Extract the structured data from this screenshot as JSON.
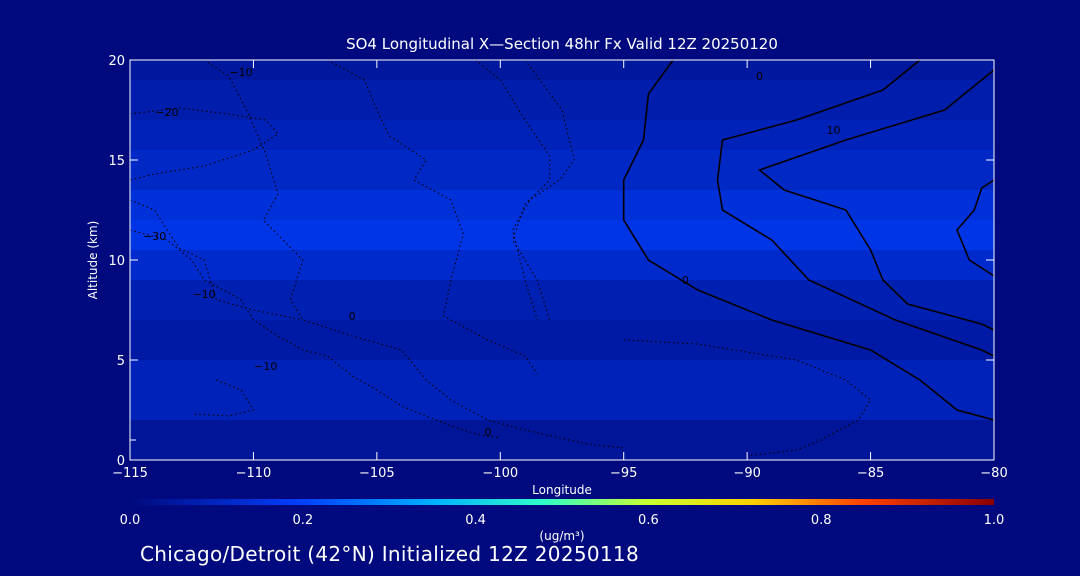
{
  "chart_data": {
    "type": "contour",
    "title": "SO4 Longitudinal X—Section 48hr  Fx Valid 12Z 20250120",
    "xlabel": "Longitude",
    "ylabel": "Altitude (km)",
    "xlim": [
      -115,
      -80
    ],
    "ylim": [
      0,
      20
    ],
    "x_ticks": [
      "−115",
      "−110",
      "−105",
      "−100",
      "−95",
      "−90",
      "−85",
      "−80"
    ],
    "y_ticks": [
      "0",
      "5",
      "10",
      "15",
      "20"
    ],
    "colorbar": {
      "label": "(ug/m³)",
      "range": [
        0.0,
        1.0
      ],
      "tick_labels": [
        "0.0",
        "0.2",
        "0.4",
        "0.6",
        "0.8",
        "1.0"
      ]
    },
    "filled_bands": [
      {
        "altitude_km": [
          19,
          20
        ],
        "value": 0.05
      },
      {
        "altitude_km": [
          17,
          19
        ],
        "value": 0.07
      },
      {
        "altitude_km": [
          15.5,
          17
        ],
        "value": 0.09
      },
      {
        "altitude_km": [
          13.5,
          15.5
        ],
        "value": 0.11
      },
      {
        "altitude_km": [
          12,
          13.5
        ],
        "value": 0.14
      },
      {
        "altitude_km": [
          10.5,
          12
        ],
        "value": 0.16
      },
      {
        "altitude_km": [
          9,
          10.5
        ],
        "value": 0.12
      },
      {
        "altitude_km": [
          7,
          9
        ],
        "value": 0.08
      },
      {
        "altitude_km": [
          5,
          7
        ],
        "value": 0.06
      },
      {
        "altitude_km": [
          2,
          5
        ],
        "value": 0.09
      },
      {
        "altitude_km": [
          0,
          2
        ],
        "value": 0.04
      }
    ],
    "contour_labels": [
      {
        "text": "−10",
        "lon": -110.5,
        "alt": 19.2
      },
      {
        "text": "−20",
        "lon": -113.5,
        "alt": 17.2
      },
      {
        "text": "−30",
        "lon": -114.0,
        "alt": 11.0
      },
      {
        "text": "−10",
        "lon": -112.0,
        "alt": 8.1
      },
      {
        "text": "−10",
        "lon": -109.5,
        "alt": 4.5
      },
      {
        "text": "0",
        "lon": -106.0,
        "alt": 7.0
      },
      {
        "text": "0",
        "lon": -100.5,
        "alt": 1.2
      },
      {
        "text": "0",
        "lon": -89.5,
        "alt": 19.0
      },
      {
        "text": "10",
        "lon": -86.5,
        "alt": 16.3
      },
      {
        "text": "0",
        "lon": -92.5,
        "alt": 8.8
      }
    ],
    "contour_lines": [
      {
        "style": "solid",
        "points": [
          [
            -93.0,
            20
          ],
          [
            -94.0,
            18.3
          ],
          [
            -94.2,
            16.0
          ],
          [
            -95.0,
            14.0
          ],
          [
            -95.0,
            12.0
          ],
          [
            -94.0,
            10.0
          ],
          [
            -92.0,
            8.5
          ],
          [
            -89.0,
            7.0
          ],
          [
            -85.0,
            5.5
          ],
          [
            -83.0,
            4.0
          ],
          [
            -81.5,
            2.5
          ],
          [
            -80,
            2.0
          ]
        ]
      },
      {
        "style": "solid",
        "points": [
          [
            -83.0,
            20
          ],
          [
            -84.5,
            18.5
          ],
          [
            -88.0,
            17.0
          ],
          [
            -91.0,
            16.0
          ],
          [
            -91.2,
            14.0
          ],
          [
            -91.0,
            12.5
          ],
          [
            -89.0,
            11.0
          ],
          [
            -87.5,
            9.0
          ],
          [
            -84.0,
            7.0
          ],
          [
            -80.5,
            5.5
          ],
          [
            -80,
            5.2
          ]
        ]
      },
      {
        "style": "solid",
        "points": [
          [
            -80,
            19.5
          ],
          [
            -82.0,
            17.5
          ],
          [
            -86.0,
            16.0
          ],
          [
            -89.5,
            14.5
          ],
          [
            -88.5,
            13.5
          ],
          [
            -86.0,
            12.5
          ],
          [
            -85.0,
            10.5
          ],
          [
            -84.5,
            9.0
          ],
          [
            -83.5,
            7.8
          ],
          [
            -80.5,
            6.8
          ],
          [
            -80,
            6.5
          ]
        ]
      },
      {
        "style": "solid",
        "points": [
          [
            -80,
            14.0
          ],
          [
            -80.5,
            13.6
          ],
          [
            -80.8,
            12.5
          ],
          [
            -81.5,
            11.5
          ],
          [
            -81.0,
            10.0
          ],
          [
            -80,
            9.2
          ]
        ]
      },
      {
        "style": "dotted",
        "points": [
          [
            -112.0,
            20
          ],
          [
            -111.0,
            19.2
          ],
          [
            -110.2,
            17.3
          ],
          [
            -109.5,
            15.3
          ],
          [
            -109.0,
            13.3
          ],
          [
            -109.6,
            12.0
          ],
          [
            -108.0,
            10.0
          ],
          [
            -108.5,
            8.0
          ],
          [
            -108.0,
            7.0
          ],
          [
            -106.0,
            6.2
          ],
          [
            -104.0,
            5.5
          ],
          [
            -103.0,
            4.0
          ],
          [
            -102.0,
            3.0
          ],
          [
            -100.5,
            2.0
          ],
          [
            -99.0,
            1.5
          ],
          [
            -96.5,
            0.8
          ],
          [
            -95.0,
            0.6
          ]
        ]
      },
      {
        "style": "dotted",
        "points": [
          [
            -107.0,
            20
          ],
          [
            -105.5,
            19.0
          ],
          [
            -105.0,
            17.5
          ],
          [
            -104.5,
            16.2
          ],
          [
            -103.0,
            15.0
          ],
          [
            -103.5,
            14.0
          ],
          [
            -102.0,
            13.0
          ],
          [
            -101.5,
            11.3
          ],
          [
            -102.0,
            9.0
          ],
          [
            -102.3,
            7.2
          ],
          [
            -100.5,
            6.0
          ],
          [
            -99.0,
            5.2
          ],
          [
            -98.5,
            4.3
          ]
        ]
      },
      {
        "style": "dotted",
        "points": [
          [
            -101.0,
            20
          ],
          [
            -100.0,
            19.0
          ],
          [
            -99.0,
            17.0
          ],
          [
            -98.0,
            15.2
          ],
          [
            -98.0,
            14.0
          ],
          [
            -99.0,
            12.8
          ],
          [
            -99.5,
            11.0
          ],
          [
            -98.5,
            9.0
          ],
          [
            -98.0,
            7.0
          ]
        ]
      },
      {
        "style": "dotted",
        "points": [
          [
            -99.0,
            20
          ],
          [
            -97.5,
            17.5
          ],
          [
            -97.0,
            15.0
          ],
          [
            -97.6,
            14.0
          ],
          [
            -98.8,
            13.0
          ],
          [
            -99.5,
            11.5
          ],
          [
            -99.0,
            9.0
          ],
          [
            -98.5,
            7.0
          ]
        ]
      },
      {
        "style": "dotted",
        "points": [
          [
            -115,
            17.3
          ],
          [
            -113.0,
            17.6
          ],
          [
            -111.0,
            17.3
          ],
          [
            -109.5,
            17.0
          ],
          [
            -109.0,
            16.3
          ],
          [
            -110.0,
            15.5
          ],
          [
            -112.0,
            14.7
          ],
          [
            -114.0,
            14.3
          ],
          [
            -115,
            14.0
          ]
        ]
      },
      {
        "style": "dotted",
        "points": [
          [
            -115,
            13.0
          ],
          [
            -114.0,
            12.5
          ],
          [
            -113.5,
            11.5
          ],
          [
            -113.0,
            10.6
          ],
          [
            -112.0,
            10.0
          ],
          [
            -111.5,
            8.0
          ],
          [
            -110.0,
            7.5
          ],
          [
            -108.0,
            7.0
          ]
        ]
      },
      {
        "style": "dotted",
        "points": [
          [
            -115,
            11.5
          ],
          [
            -113.5,
            11.0
          ],
          [
            -112.5,
            10.0
          ],
          [
            -112.0,
            9.0
          ],
          [
            -111.2,
            8.5
          ],
          [
            -110.5,
            8.0
          ],
          [
            -110.0,
            7.0
          ],
          [
            -109.0,
            6.2
          ],
          [
            -108.0,
            5.5
          ],
          [
            -107.0,
            5.2
          ],
          [
            -106.0,
            4.2
          ],
          [
            -105.0,
            3.5
          ],
          [
            -104.0,
            2.7
          ],
          [
            -103.0,
            2.2
          ],
          [
            -102.0,
            1.7
          ],
          [
            -101.0,
            1.3
          ],
          [
            -100.0,
            1.1
          ]
        ]
      },
      {
        "style": "dotted",
        "points": [
          [
            -95.0,
            6.0
          ],
          [
            -92.0,
            5.8
          ],
          [
            -88.0,
            5.0
          ],
          [
            -86.0,
            4.0
          ],
          [
            -85.0,
            3.0
          ],
          [
            -85.5,
            2.0
          ],
          [
            -87.0,
            1.0
          ],
          [
            -88.0,
            0.5
          ],
          [
            -90.0,
            0.2
          ]
        ]
      },
      {
        "style": "dotted",
        "points": [
          [
            -111.5,
            4.0
          ],
          [
            -110.5,
            3.5
          ],
          [
            -110.0,
            2.5
          ],
          [
            -111.0,
            2.2
          ],
          [
            -112.5,
            2.3
          ]
        ]
      }
    ]
  },
  "footer": "Chicago/Detroit (42°N) Initialized 12Z 20250118"
}
